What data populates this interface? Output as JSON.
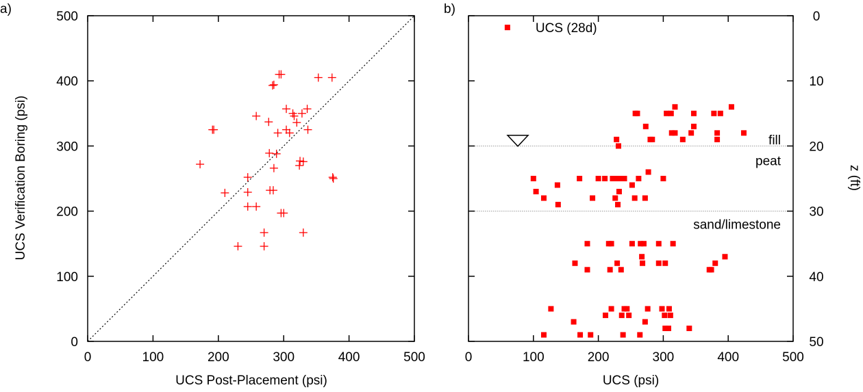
{
  "chart_data": [
    {
      "type": "scatter",
      "panel_label": "a)",
      "xlabel": "UCS Post-Placement (psi)",
      "ylabel": "UCS Verification Boring (psi)",
      "xlim": [
        0,
        500
      ],
      "ylim": [
        0,
        500
      ],
      "xticks": [
        "0",
        "100",
        "200",
        "300",
        "400",
        "500"
      ],
      "yticks": [
        "0",
        "100",
        "200",
        "300",
        "400",
        "500"
      ],
      "grid": false,
      "reference_line": {
        "style": "dotted",
        "x": [
          0,
          500
        ],
        "y": [
          0,
          500
        ]
      },
      "series": [
        {
          "marker": "plus",
          "color": "#ff0000",
          "points": [
            [
              293,
              410
            ],
            [
              296,
              410
            ],
            [
              283,
              393
            ],
            [
              285,
              394
            ],
            [
              353,
              405
            ],
            [
              374,
              405
            ],
            [
              304,
              357
            ],
            [
              336,
              357
            ],
            [
              314,
              350
            ],
            [
              328,
              350
            ],
            [
              258,
              346
            ],
            [
              316,
              346
            ],
            [
              277,
              337
            ],
            [
              320,
              336
            ],
            [
              191,
              325
            ],
            [
              193,
              325
            ],
            [
              304,
              325
            ],
            [
              309,
              320
            ],
            [
              337,
              325
            ],
            [
              291,
              320
            ],
            [
              278,
              289
            ],
            [
              289,
              288
            ],
            [
              325,
              277
            ],
            [
              330,
              276
            ],
            [
              172,
              272
            ],
            [
              324,
              270
            ],
            [
              285,
              266
            ],
            [
              245,
              252
            ],
            [
              375,
              252
            ],
            [
              376,
              250
            ],
            [
              210,
              228
            ],
            [
              245,
              229
            ],
            [
              279,
              232
            ],
            [
              284,
              232
            ],
            [
              245,
              207
            ],
            [
              258,
              207
            ],
            [
              296,
              197
            ],
            [
              300,
              197
            ],
            [
              270,
              167
            ],
            [
              330,
              167
            ],
            [
              230,
              146
            ],
            [
              270,
              146
            ]
          ]
        }
      ]
    },
    {
      "type": "scatter",
      "panel_label": "b)",
      "xlabel": "UCS (psi)",
      "ylabel": "z (ft)",
      "xlim": [
        0,
        500
      ],
      "ylim": [
        0,
        50
      ],
      "y_inverted": true,
      "y_axis_side": "right",
      "xticks": [
        "0",
        "100",
        "200",
        "300",
        "400",
        "500"
      ],
      "yticks": [
        "0",
        "10",
        "20",
        "30",
        "40",
        "50"
      ],
      "grid": false,
      "legend": {
        "position": "top-left",
        "entries": [
          "UCS (28d)"
        ]
      },
      "layer_boundaries": [
        20,
        30
      ],
      "layer_labels": [
        {
          "text": "fill",
          "depth": 19
        },
        {
          "text": "peat",
          "depth": 22.2
        },
        {
          "text": "sand/limestone",
          "depth": 32
        }
      ],
      "water_table_depth": 19.2,
      "water_table_x": 76,
      "series": [
        {
          "name": "UCS (28d)",
          "marker": "square",
          "color": "#ff0000",
          "points": [
            [
              257,
              15
            ],
            [
              260,
              15
            ],
            [
              318,
              14
            ],
            [
              405,
              14
            ],
            [
              305,
              15
            ],
            [
              312,
              15
            ],
            [
              347,
              15
            ],
            [
              378,
              15
            ],
            [
              388,
              15
            ],
            [
              273,
              17
            ],
            [
              347,
              17
            ],
            [
              313,
              18
            ],
            [
              318,
              18
            ],
            [
              343,
              18
            ],
            [
              383,
              18
            ],
            [
              424,
              18
            ],
            [
              280,
              19
            ],
            [
              283,
              19
            ],
            [
              228,
              19
            ],
            [
              330,
              19
            ],
            [
              383,
              19
            ],
            [
              231,
              20
            ],
            [
              277,
              24
            ],
            [
              100,
              25
            ],
            [
              171,
              25
            ],
            [
              200,
              25
            ],
            [
              210,
              25
            ],
            [
              222,
              25
            ],
            [
              228,
              25
            ],
            [
              232,
              25
            ],
            [
              236,
              25
            ],
            [
              240,
              25
            ],
            [
              262,
              25
            ],
            [
              300,
              25
            ],
            [
              137,
              26
            ],
            [
              252,
              26
            ],
            [
              104,
              27
            ],
            [
              232,
              27
            ],
            [
              116,
              28
            ],
            [
              191,
              28
            ],
            [
              226,
              28
            ],
            [
              256,
              28
            ],
            [
              272,
              28
            ],
            [
              138,
              29
            ],
            [
              230,
              29
            ],
            [
              183,
              35
            ],
            [
              216,
              35
            ],
            [
              220,
              35
            ],
            [
              252,
              35
            ],
            [
              265,
              35
            ],
            [
              270,
              35
            ],
            [
              293,
              35
            ],
            [
              315,
              35
            ],
            [
              267,
              37
            ],
            [
              395,
              37
            ],
            [
              164,
              38
            ],
            [
              229,
              38
            ],
            [
              268,
              38
            ],
            [
              293,
              38
            ],
            [
              303,
              38
            ],
            [
              380,
              38
            ],
            [
              183,
              39
            ],
            [
              218,
              39
            ],
            [
              235,
              39
            ],
            [
              371,
              39
            ],
            [
              374,
              39
            ],
            [
              127,
              45
            ],
            [
              220,
              45
            ],
            [
              240,
              45
            ],
            [
              244,
              45
            ],
            [
              276,
              45
            ],
            [
              298,
              45
            ],
            [
              309,
              45
            ],
            [
              211,
              46
            ],
            [
              236,
              46
            ],
            [
              247,
              46
            ],
            [
              302,
              46
            ],
            [
              311,
              46
            ],
            [
              162,
              47
            ],
            [
              272,
              47
            ],
            [
              303,
              48
            ],
            [
              308,
              48
            ],
            [
              340,
              48
            ],
            [
              116,
              49
            ],
            [
              172,
              49
            ],
            [
              188,
              49
            ],
            [
              238,
              49
            ],
            [
              264,
              49
            ]
          ]
        }
      ]
    }
  ]
}
